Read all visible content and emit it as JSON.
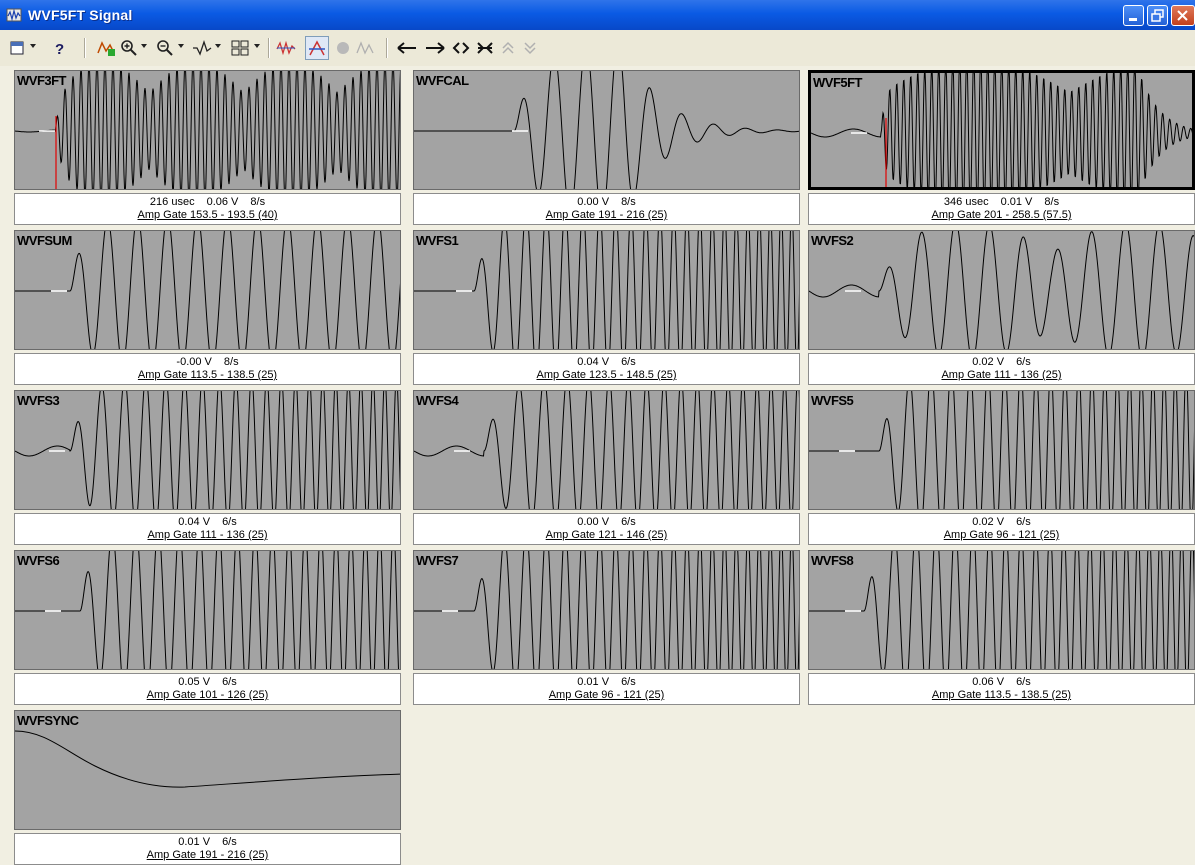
{
  "window": {
    "title": "WVF5FT Signal"
  },
  "colors": {
    "titlebar": "#0a5ae4",
    "plot_bg": "#a3a3a3",
    "cursor": "#e00000",
    "trace": "#000000"
  },
  "toolbar": {
    "buttons": [
      {
        "name": "save-icon"
      },
      {
        "name": "help-icon"
      },
      {
        "name": "auto-scale-icon"
      },
      {
        "name": "zoom-in-icon"
      },
      {
        "name": "zoom-out-icon"
      },
      {
        "name": "waveform-icon"
      },
      {
        "name": "grid-layout-icon"
      },
      {
        "name": "filter-icon"
      },
      {
        "name": "gate-icon"
      },
      {
        "name": "record-icon"
      },
      {
        "name": "peak-icon"
      },
      {
        "name": "shift-left-icon"
      },
      {
        "name": "shift-right-icon"
      },
      {
        "name": "expand-icon"
      },
      {
        "name": "compress-icon"
      },
      {
        "name": "scroll-up-icon"
      },
      {
        "name": "scroll-down-icon"
      }
    ]
  },
  "panels": [
    {
      "name": "WVF3FT",
      "time": "216 usec",
      "volt": "0.06 V",
      "rate": "8/s",
      "gate": "Amp Gate  153.5 - 193.5  (40)"
    },
    {
      "name": "WVFCAL",
      "time": "",
      "volt": "0.00 V",
      "rate": "8/s",
      "gate": "Amp Gate  191 - 216  (25)"
    },
    {
      "name": "WVF5FT",
      "time": "346 usec",
      "volt": "0.01 V",
      "rate": "8/s",
      "gate": "Amp Gate  201 - 258.5  (57.5)"
    },
    {
      "name": "WVFSUM",
      "time": "",
      "volt": "-0.00 V",
      "rate": "8/s",
      "gate": "Amp Gate  113.5 - 138.5  (25)"
    },
    {
      "name": "WVFS1",
      "time": "",
      "volt": "0.04 V",
      "rate": "6/s",
      "gate": "Amp Gate  123.5 - 148.5  (25)"
    },
    {
      "name": "WVFS2",
      "time": "",
      "volt": "0.02 V",
      "rate": "6/s",
      "gate": "Amp Gate  111 - 136  (25)"
    },
    {
      "name": "WVFS3",
      "time": "",
      "volt": "0.04 V",
      "rate": "6/s",
      "gate": "Amp Gate  111 - 136  (25)"
    },
    {
      "name": "WVFS4",
      "time": "",
      "volt": "0.00 V",
      "rate": "6/s",
      "gate": "Amp Gate  121 - 146  (25)"
    },
    {
      "name": "WVFS5",
      "time": "",
      "volt": "0.02 V",
      "rate": "6/s",
      "gate": "Amp Gate  96 - 121  (25)"
    },
    {
      "name": "WVFS6",
      "time": "",
      "volt": "0.05 V",
      "rate": "6/s",
      "gate": "Amp Gate  101 - 126  (25)"
    },
    {
      "name": "WVFS7",
      "time": "",
      "volt": "0.01 V",
      "rate": "6/s",
      "gate": "Amp Gate  96 - 121  (25)"
    },
    {
      "name": "WVFS8",
      "time": "",
      "volt": "0.06 V",
      "rate": "6/s",
      "gate": "Amp Gate  113.5 - 138.5  (25)"
    },
    {
      "name": "WVFSYNC",
      "time": "",
      "volt": "0.01 V",
      "rate": "6/s",
      "gate": "Amp Gate  191 - 216  (25)"
    }
  ]
}
